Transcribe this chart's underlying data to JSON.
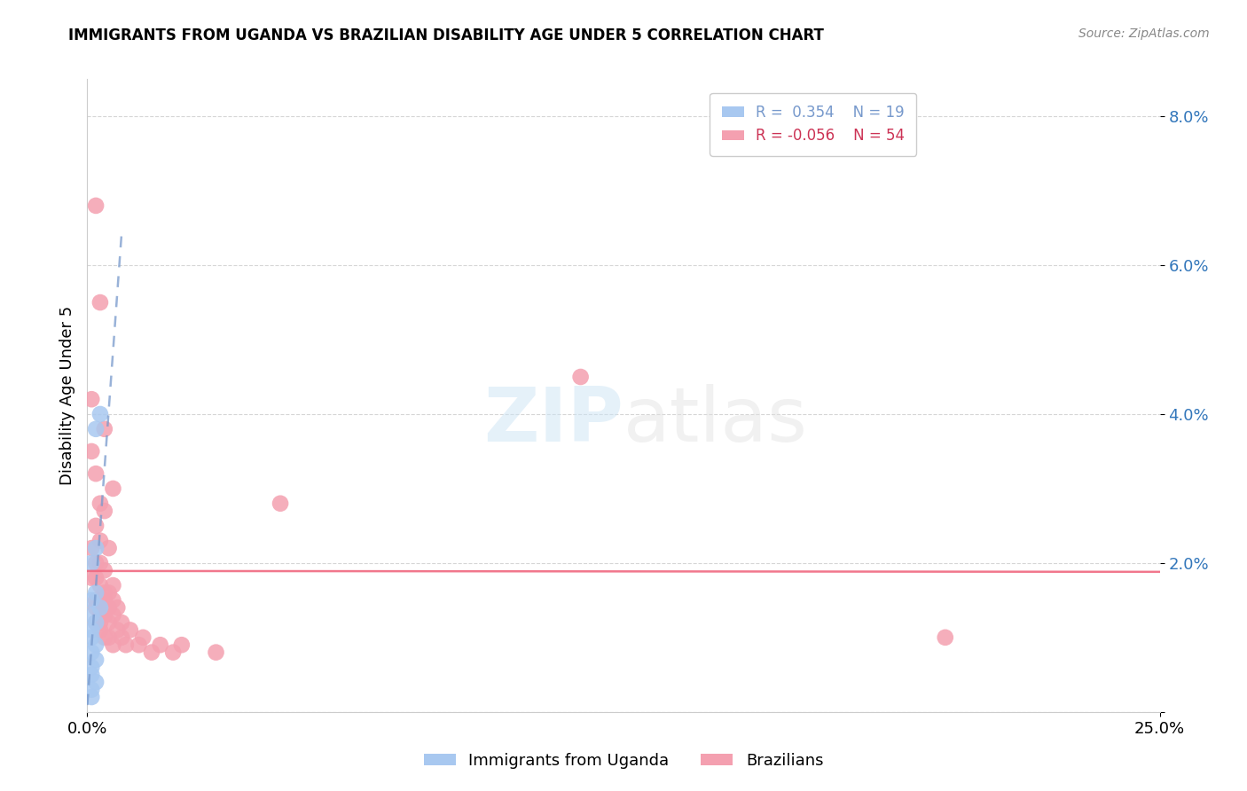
{
  "title": "IMMIGRANTS FROM UGANDA VS BRAZILIAN DISABILITY AGE UNDER 5 CORRELATION CHART",
  "source": "Source: ZipAtlas.com",
  "ylabel": "Disability Age Under 5",
  "xlim": [
    0.0,
    0.25
  ],
  "ylim": [
    0.0,
    0.085
  ],
  "R_uganda": 0.354,
  "N_uganda": 19,
  "R_brazil": -0.056,
  "N_brazil": 54,
  "uganda_color": "#a8c8f0",
  "brazil_color": "#f4a0b0",
  "uganda_line_color": "#7799cc",
  "brazil_line_color": "#f06880",
  "uganda_points": [
    [
      0.002,
      0.038
    ],
    [
      0.003,
      0.04
    ],
    [
      0.001,
      0.02
    ],
    [
      0.002,
      0.022
    ],
    [
      0.001,
      0.015
    ],
    [
      0.002,
      0.016
    ],
    [
      0.003,
      0.014
    ],
    [
      0.001,
      0.013
    ],
    [
      0.002,
      0.012
    ],
    [
      0.001,
      0.011
    ],
    [
      0.001,
      0.01
    ],
    [
      0.002,
      0.009
    ],
    [
      0.001,
      0.008
    ],
    [
      0.002,
      0.007
    ],
    [
      0.001,
      0.006
    ],
    [
      0.001,
      0.005
    ],
    [
      0.002,
      0.004
    ],
    [
      0.001,
      0.003
    ],
    [
      0.001,
      0.002
    ]
  ],
  "brazil_points": [
    [
      0.002,
      0.068
    ],
    [
      0.003,
      0.055
    ],
    [
      0.001,
      0.042
    ],
    [
      0.004,
      0.038
    ],
    [
      0.001,
      0.035
    ],
    [
      0.002,
      0.032
    ],
    [
      0.006,
      0.03
    ],
    [
      0.003,
      0.028
    ],
    [
      0.004,
      0.027
    ],
    [
      0.002,
      0.025
    ],
    [
      0.003,
      0.023
    ],
    [
      0.001,
      0.022
    ],
    [
      0.005,
      0.022
    ],
    [
      0.003,
      0.02
    ],
    [
      0.002,
      0.02
    ],
    [
      0.004,
      0.019
    ],
    [
      0.001,
      0.018
    ],
    [
      0.002,
      0.018
    ],
    [
      0.003,
      0.017
    ],
    [
      0.006,
      0.017
    ],
    [
      0.004,
      0.016
    ],
    [
      0.005,
      0.016
    ],
    [
      0.002,
      0.015
    ],
    [
      0.003,
      0.015
    ],
    [
      0.006,
      0.015
    ],
    [
      0.004,
      0.015
    ],
    [
      0.002,
      0.014
    ],
    [
      0.005,
      0.014
    ],
    [
      0.007,
      0.014
    ],
    [
      0.003,
      0.013
    ],
    [
      0.004,
      0.013
    ],
    [
      0.006,
      0.013
    ],
    [
      0.002,
      0.012
    ],
    [
      0.003,
      0.012
    ],
    [
      0.008,
      0.012
    ],
    [
      0.005,
      0.012
    ],
    [
      0.003,
      0.011
    ],
    [
      0.007,
      0.011
    ],
    [
      0.01,
      0.011
    ],
    [
      0.005,
      0.01
    ],
    [
      0.004,
      0.01
    ],
    [
      0.008,
      0.01
    ],
    [
      0.013,
      0.01
    ],
    [
      0.006,
      0.009
    ],
    [
      0.009,
      0.009
    ],
    [
      0.012,
      0.009
    ],
    [
      0.017,
      0.009
    ],
    [
      0.022,
      0.009
    ],
    [
      0.015,
      0.008
    ],
    [
      0.02,
      0.008
    ],
    [
      0.03,
      0.008
    ],
    [
      0.115,
      0.045
    ],
    [
      0.045,
      0.028
    ],
    [
      0.2,
      0.01
    ]
  ]
}
